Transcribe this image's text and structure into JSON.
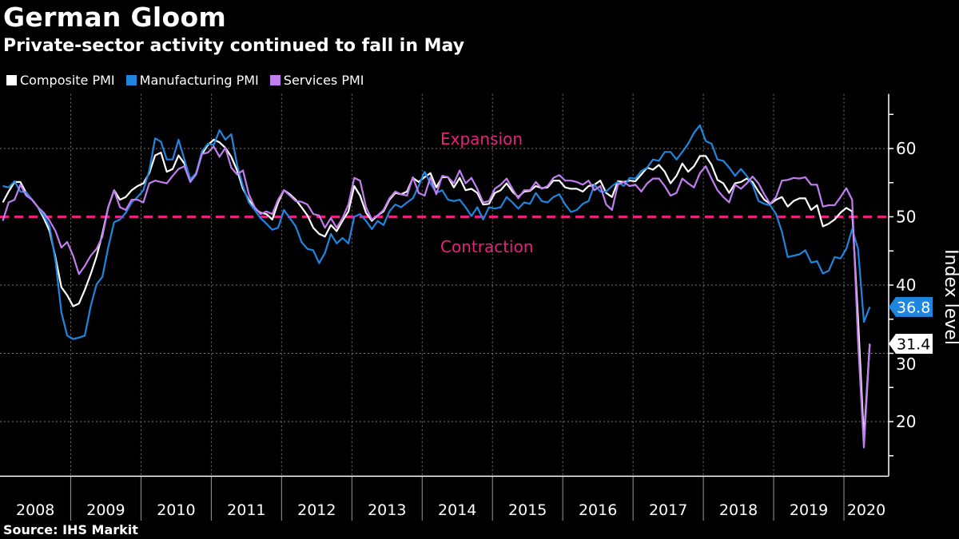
{
  "header": {
    "title": "German Gloom",
    "subtitle": "Private-sector activity continued to fall in May"
  },
  "legend": [
    {
      "label": "Composite PMI",
      "color": "#ffffff"
    },
    {
      "label": "Manufacturing PMI",
      "color": "#1f86e0"
    },
    {
      "label": "Services PMI",
      "color": "#c07ef0"
    }
  ],
  "footer": {
    "source": "Source: IHS Markit"
  },
  "chart_data": {
    "type": "line",
    "title": "German Gloom",
    "subtitle": "Private-sector activity continued to fall in May",
    "x_start": "2008-01",
    "x_end": "2020-05",
    "x_frequency": "monthly",
    "year_labels": [
      "2008",
      "2009",
      "2010",
      "2011",
      "2012",
      "2013",
      "2014",
      "2015",
      "2016",
      "2017",
      "2018",
      "2019",
      "2020"
    ],
    "ylabel": "Index level",
    "y_axis_position": "right",
    "ylim": [
      12,
      68
    ],
    "y_ticks": [
      20,
      30,
      40,
      50,
      60
    ],
    "grid": true,
    "legend_position": "top-left",
    "reference_line": {
      "value": 50,
      "color": "#e8207f",
      "style": "dashed"
    },
    "annotations": {
      "above": "Expansion",
      "below": "Contraction"
    },
    "end_labels": [
      {
        "series": "Manufacturing PMI",
        "text": "36.8",
        "value": 36.8,
        "color": "#1f86e0"
      },
      {
        "series": "Composite PMI",
        "text": "31.4",
        "value": 31.4,
        "color": "#ffffff"
      }
    ],
    "series": [
      {
        "name": "Composite PMI",
        "color": "#ffffff",
        "values": [
          52.1,
          53.7,
          55.1,
          55.1,
          53.5,
          52.5,
          51.4,
          49.8,
          47.9,
          44.0,
          39.7,
          38.5,
          36.9,
          37.3,
          39.3,
          41.6,
          44.2,
          47.5,
          51.4,
          53.9,
          52.5,
          52.9,
          53.9,
          54.5,
          54.9,
          56.4,
          59.0,
          59.4,
          56.6,
          57.0,
          59.0,
          57.8,
          55.3,
          56.4,
          59.2,
          60.5,
          61.3,
          60.9,
          60.1,
          58.8,
          56.8,
          54.1,
          52.5,
          51.2,
          50.6,
          50.4,
          49.6,
          52.1,
          53.9,
          53.3,
          52.5,
          51.4,
          50.2,
          48.4,
          47.5,
          47.1,
          48.8,
          47.9,
          49.4,
          50.8,
          54.5,
          53.1,
          50.6,
          49.4,
          50.2,
          50.8,
          52.5,
          53.5,
          53.3,
          53.7,
          55.7,
          55.1,
          55.8,
          56.4,
          54.3,
          55.8,
          55.8,
          54.3,
          55.7,
          53.9,
          54.1,
          53.5,
          51.8,
          51.9,
          53.5,
          53.9,
          54.9,
          53.7,
          52.9,
          53.7,
          53.8,
          54.5,
          54.2,
          54.3,
          55.3,
          55.3,
          54.3,
          54.1,
          54.1,
          53.7,
          54.5,
          54.7,
          55.3,
          53.5,
          52.9,
          55.2,
          55.1,
          55.3,
          55.2,
          56.2,
          57.2,
          56.9,
          57.6,
          56.6,
          54.9,
          56.0,
          57.8,
          56.6,
          57.4,
          58.9,
          58.9,
          57.6,
          55.4,
          54.9,
          53.5,
          54.9,
          55.1,
          55.6,
          55.1,
          53.7,
          52.5,
          51.9,
          52.5,
          52.9,
          51.5,
          52.3,
          52.7,
          52.7,
          51.0,
          51.7,
          48.6,
          49.0,
          49.6,
          50.6,
          51.3,
          50.8,
          35.0,
          17.4,
          31.4
        ]
      },
      {
        "name": "Manufacturing PMI",
        "color": "#1f86e0",
        "values": [
          54.5,
          54.3,
          55.2,
          53.7,
          53.6,
          52.5,
          51.4,
          50.2,
          48.6,
          43.5,
          36.0,
          32.6,
          32.1,
          32.3,
          32.6,
          36.9,
          40.1,
          41.2,
          45.5,
          49.2,
          49.6,
          50.6,
          52.1,
          52.9,
          53.9,
          56.8,
          61.5,
          61.0,
          58.4,
          58.4,
          61.3,
          58.4,
          55.5,
          56.4,
          59.6,
          60.7,
          60.5,
          62.7,
          61.3,
          62.1,
          57.6,
          54.5,
          52.1,
          51.0,
          49.8,
          49.0,
          48.1,
          48.4,
          51.0,
          49.8,
          48.6,
          46.3,
          45.3,
          45.1,
          43.2,
          44.7,
          47.5,
          46.1,
          46.9,
          46.1,
          50.0,
          50.4,
          49.4,
          48.2,
          49.4,
          48.8,
          50.8,
          51.8,
          51.4,
          52.1,
          52.7,
          54.5,
          56.6,
          54.9,
          53.5,
          53.9,
          52.5,
          52.3,
          52.5,
          51.4,
          50.1,
          51.4,
          49.6,
          51.4,
          51.2,
          51.4,
          52.9,
          52.1,
          51.2,
          52.1,
          51.9,
          53.5,
          52.3,
          52.1,
          52.9,
          53.3,
          51.8,
          50.7,
          51.0,
          51.9,
          52.3,
          54.7,
          53.7,
          53.7,
          54.5,
          55.1,
          54.5,
          55.7,
          55.6,
          56.7,
          57.2,
          58.4,
          58.2,
          59.5,
          59.5,
          58.4,
          59.5,
          60.7,
          62.3,
          63.4,
          61.1,
          60.7,
          58.4,
          58.2,
          57.2,
          56.0,
          57.0,
          56.0,
          54.7,
          52.3,
          51.9,
          51.7,
          50.4,
          47.8,
          44.1,
          44.3,
          44.5,
          45.1,
          43.3,
          43.5,
          41.7,
          42.1,
          44.1,
          43.9,
          45.3,
          48.2,
          45.3,
          34.6,
          36.8
        ]
      },
      {
        "name": "Services PMI",
        "color": "#c07ef0",
        "values": [
          49.4,
          52.1,
          52.5,
          54.7,
          53.1,
          52.5,
          51.4,
          50.6,
          49.4,
          47.9,
          45.5,
          46.3,
          44.3,
          41.6,
          42.8,
          44.3,
          45.3,
          47.1,
          51.4,
          53.9,
          51.4,
          51.0,
          52.5,
          52.5,
          52.1,
          54.9,
          55.3,
          55.1,
          54.9,
          56.0,
          57.0,
          57.4,
          55.1,
          56.2,
          59.2,
          59.4,
          60.3,
          58.8,
          60.1,
          57.2,
          56.2,
          56.8,
          53.3,
          51.4,
          50.4,
          50.8,
          50.4,
          52.5,
          53.9,
          53.1,
          52.3,
          52.2,
          51.8,
          50.4,
          50.2,
          48.4,
          49.8,
          48.4,
          49.8,
          51.8,
          55.7,
          55.3,
          51.4,
          49.6,
          50.2,
          51.0,
          52.7,
          53.7,
          53.3,
          53.1,
          55.8,
          53.5,
          53.1,
          55.8,
          53.3,
          56.0,
          55.8,
          54.9,
          56.8,
          54.9,
          55.7,
          54.1,
          52.1,
          52.3,
          54.1,
          54.7,
          55.6,
          54.1,
          52.7,
          53.9,
          53.9,
          55.1,
          54.1,
          54.5,
          55.7,
          56.1,
          55.3,
          55.3,
          55.1,
          54.7,
          55.3,
          53.9,
          54.5,
          51.8,
          51.0,
          54.7,
          55.1,
          54.5,
          54.7,
          53.7,
          54.9,
          55.6,
          55.6,
          54.5,
          53.1,
          53.5,
          55.6,
          54.9,
          54.3,
          56.4,
          57.4,
          55.6,
          53.9,
          52.9,
          52.1,
          54.7,
          54.1,
          54.9,
          55.9,
          54.9,
          53.3,
          51.9,
          52.9,
          55.3,
          55.4,
          55.7,
          55.6,
          55.8,
          54.7,
          54.7,
          51.5,
          51.7,
          51.7,
          52.9,
          54.2,
          52.5,
          31.7,
          16.2,
          31.4
        ]
      }
    ]
  }
}
